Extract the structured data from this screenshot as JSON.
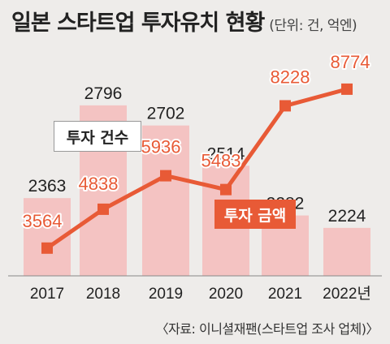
{
  "title": "일본 스타트업 투자유치 현황",
  "unit_note": "(단위: 건, 억엔)",
  "source": "〈자료: 이니셜재팬(스타트업 조사 업체)〉",
  "colors": {
    "bar": "#f4c3c2",
    "line": "#e85a36",
    "background": "#eeecea"
  },
  "chart_data": {
    "type": "bar",
    "categories": [
      "2017",
      "2018",
      "2019",
      "2020",
      "2021",
      "2022년"
    ],
    "series": [
      {
        "name": "투자 건수",
        "type": "bar",
        "values": [
          2363,
          2796,
          2702,
          2514,
          2282,
          2224
        ]
      },
      {
        "name": "투자 금액",
        "type": "line",
        "values": [
          3564,
          4838,
          5936,
          5483,
          8228,
          8774
        ]
      }
    ],
    "legend": [
      "투자 건수",
      "투자 금액"
    ]
  }
}
